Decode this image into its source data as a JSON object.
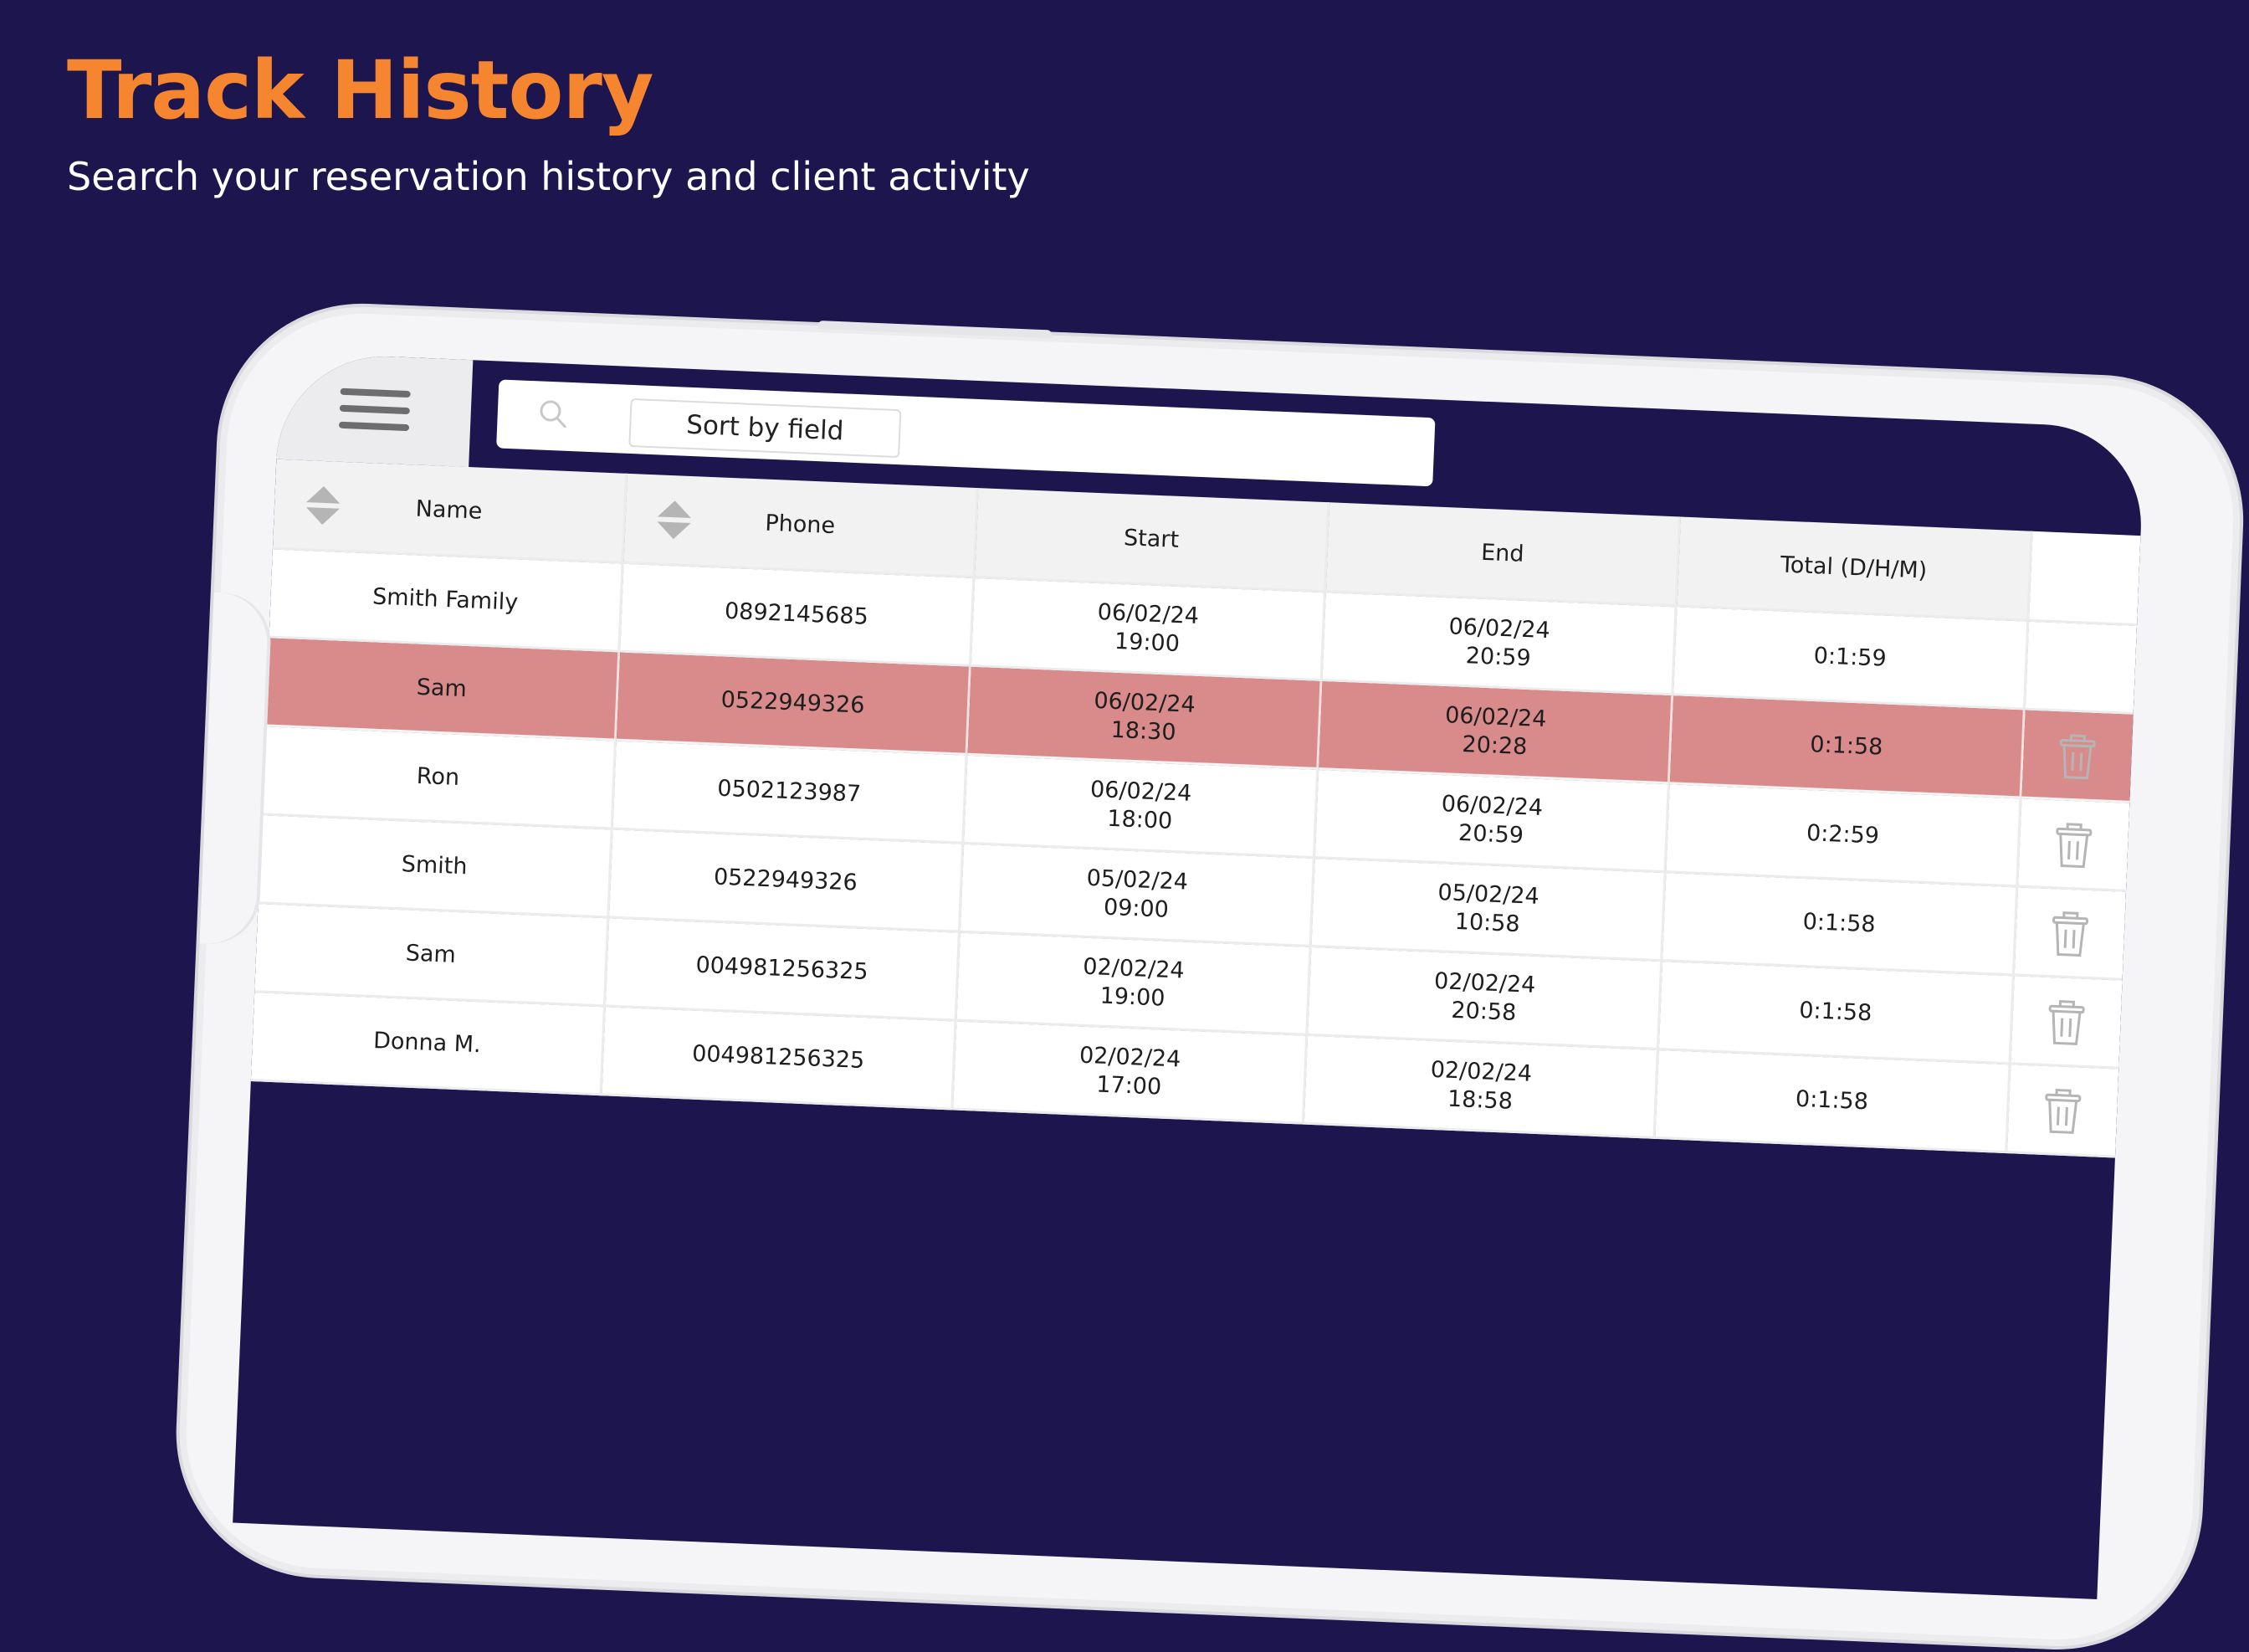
{
  "headline": "Track History",
  "subline": "Search your reservation history and client activity",
  "toolbar": {
    "search_icon": "search-icon",
    "sort_label": "Sort by field"
  },
  "table": {
    "columns": [
      "Name",
      "Phone",
      "Start",
      "End",
      "Total (D/H/M)"
    ],
    "sortable_columns": [
      "Name",
      "Phone"
    ],
    "rows": [
      {
        "name": "Smith Family",
        "phone": "0892145685",
        "start_date": "06/02/24",
        "start_time": "19:00",
        "end_date": "06/02/24",
        "end_time": "20:59",
        "total": "0:1:59",
        "selected": false,
        "has_delete": false
      },
      {
        "name": "Sam",
        "phone": "0522949326",
        "start_date": "06/02/24",
        "start_time": "18:30",
        "end_date": "06/02/24",
        "end_time": "20:28",
        "total": "0:1:58",
        "selected": true,
        "has_delete": true
      },
      {
        "name": "Ron",
        "phone": "0502123987",
        "start_date": "06/02/24",
        "start_time": "18:00",
        "end_date": "06/02/24",
        "end_time": "20:59",
        "total": "0:2:59",
        "selected": false,
        "has_delete": true
      },
      {
        "name": "Smith",
        "phone": "0522949326",
        "start_date": "05/02/24",
        "start_time": "09:00",
        "end_date": "05/02/24",
        "end_time": "10:58",
        "total": "0:1:58",
        "selected": false,
        "has_delete": true
      },
      {
        "name": "Sam",
        "phone": "004981256325",
        "start_date": "02/02/24",
        "start_time": "19:00",
        "end_date": "02/02/24",
        "end_time": "20:58",
        "total": "0:1:58",
        "selected": false,
        "has_delete": true
      },
      {
        "name": "Donna M.",
        "phone": "004981256325",
        "start_date": "02/02/24",
        "start_time": "17:00",
        "end_date": "02/02/24",
        "end_time": "18:58",
        "total": "0:1:58",
        "selected": false,
        "has_delete": true
      }
    ]
  },
  "colors": {
    "background": "#1d154d",
    "headline": "#f6852f",
    "selected_row": "#d98b8b"
  }
}
